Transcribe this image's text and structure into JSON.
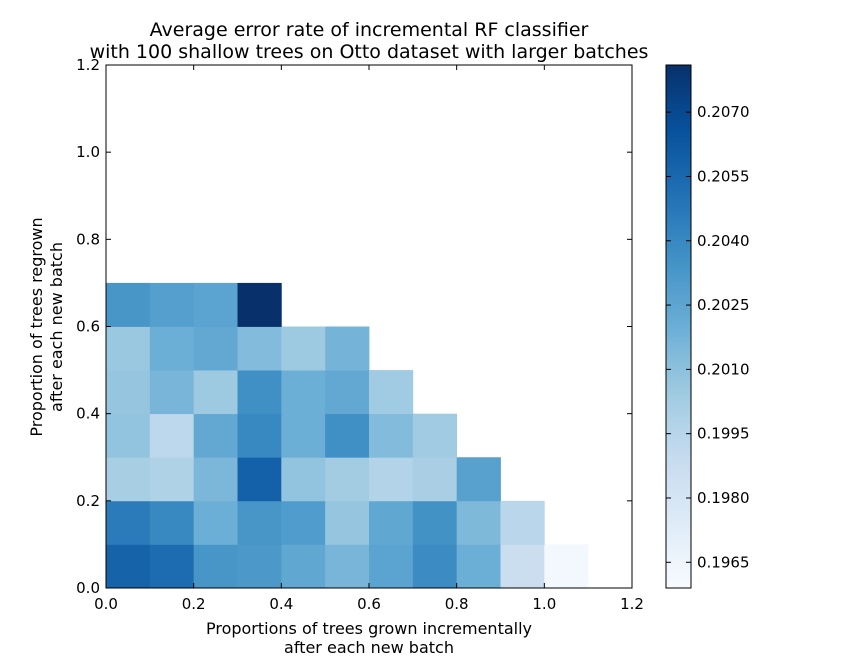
{
  "chart_data": {
    "type": "heatmap",
    "title_line1": "Average error rate of incremental RF classifier",
    "title_line2": "with 100 shallow trees on Otto dataset with larger batches",
    "xlabel_line1": "Proportions of trees grown incrementally",
    "xlabel_line2": "after each new batch",
    "ylabel_line1": "Proportion of trees regrown",
    "ylabel_line2": "after each new batch",
    "xlim": [
      0.0,
      1.2
    ],
    "ylim": [
      0.0,
      1.2
    ],
    "x_ticks": [
      "0.0",
      "0.2",
      "0.4",
      "0.6",
      "0.8",
      "1.0",
      "1.2"
    ],
    "y_ticks": [
      "0.0",
      "0.2",
      "0.4",
      "0.6",
      "0.8",
      "1.0",
      "1.2"
    ],
    "cell_size": 0.1,
    "colormap": "Blues",
    "color_range": [
      0.1959,
      0.2081
    ],
    "colorbar_ticks": [
      "0.1965",
      "0.1980",
      "0.1995",
      "0.2010",
      "0.2025",
      "0.2040",
      "0.2055",
      "0.2070"
    ],
    "colorbar_tick_values": [
      0.1965,
      0.198,
      0.1995,
      0.201,
      0.2025,
      0.204,
      0.2055,
      0.207
    ],
    "rows": [
      {
        "y": 0.0,
        "values": [
          0.2057,
          0.2053,
          0.2033,
          0.2032,
          0.2024,
          0.2016,
          0.2026,
          0.2038,
          0.202,
          0.1987,
          0.1962
        ]
      },
      {
        "y": 0.1,
        "values": [
          0.2046,
          0.204,
          0.202,
          0.2033,
          0.203,
          0.2007,
          0.2024,
          0.2035,
          0.2014,
          0.1994
        ]
      },
      {
        "y": 0.2,
        "values": [
          0.2001,
          0.1998,
          0.2015,
          0.2058,
          0.2008,
          0.2003,
          0.1997,
          0.2,
          0.2027
        ]
      },
      {
        "y": 0.3,
        "values": [
          0.2008,
          0.1993,
          0.2023,
          0.204,
          0.202,
          0.2036,
          0.2013,
          0.2004
        ]
      },
      {
        "y": 0.4,
        "values": [
          0.2007,
          0.2016,
          0.2005,
          0.2036,
          0.202,
          0.2023,
          0.2004
        ]
      },
      {
        "y": 0.5,
        "values": [
          0.2006,
          0.202,
          0.2023,
          0.2013,
          0.2005,
          0.2017
        ]
      },
      {
        "y": 0.6,
        "values": [
          0.2033,
          0.2028,
          0.2026,
          0.2081
        ]
      }
    ]
  }
}
